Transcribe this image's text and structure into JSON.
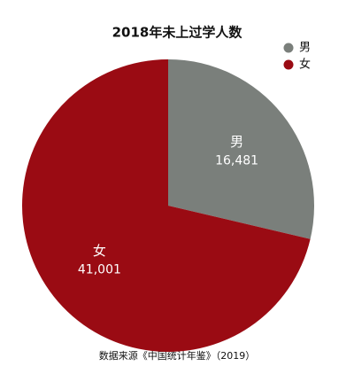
{
  "chart_data": {
    "type": "pie",
    "title": "2018年未上过学人数",
    "categories": [
      "男",
      "女"
    ],
    "values": [
      16481,
      41001
    ],
    "value_labels": [
      "16,481",
      "41,001"
    ],
    "colors": [
      "#7a7f7b",
      "#9a0b13"
    ],
    "legend": "top-right",
    "source": "数据来源《中国统计年鉴》（2019）"
  }
}
